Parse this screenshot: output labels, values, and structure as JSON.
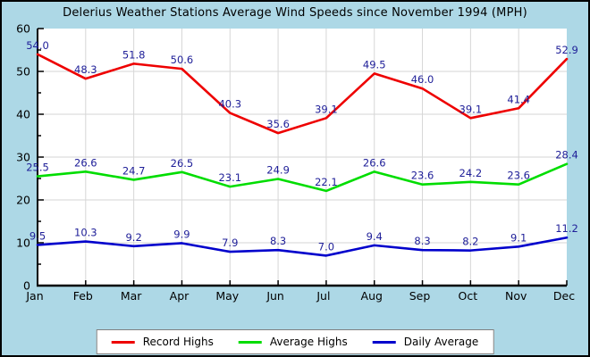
{
  "chart_data": {
    "type": "line",
    "title": "Delerius Weather Stations Average Wind Speeds since November 1994 (MPH)",
    "categories": [
      "Jan",
      "Feb",
      "Mar",
      "Apr",
      "May",
      "Jun",
      "Jul",
      "Aug",
      "Sep",
      "Oct",
      "Nov",
      "Dec"
    ],
    "series": [
      {
        "name": "Record Highs",
        "color": "#ee0000",
        "values": [
          54.0,
          48.3,
          51.8,
          50.6,
          40.3,
          35.6,
          39.1,
          49.5,
          46.0,
          39.1,
          41.4,
          52.9
        ]
      },
      {
        "name": "Average Highs",
        "color": "#00dd00",
        "values": [
          25.5,
          26.6,
          24.7,
          26.5,
          23.1,
          24.9,
          22.1,
          26.6,
          23.6,
          24.2,
          23.6,
          28.4
        ]
      },
      {
        "name": "Daily Average",
        "color": "#0000cc",
        "values": [
          9.5,
          10.3,
          9.2,
          9.9,
          7.9,
          8.3,
          7.0,
          9.4,
          8.3,
          8.2,
          9.1,
          11.2
        ]
      }
    ],
    "ylim": [
      0,
      60
    ],
    "ytick_step": 10,
    "yminor_step": 5,
    "grid": true,
    "legend_position": "bottom",
    "value_label_decimals": 1
  },
  "colors": {
    "background": "#add8e6",
    "plot_background": "#ffffff",
    "grid": "#d6d6d6",
    "axis": "#000000",
    "value_label": "#202099",
    "tick_label": "#000000"
  }
}
